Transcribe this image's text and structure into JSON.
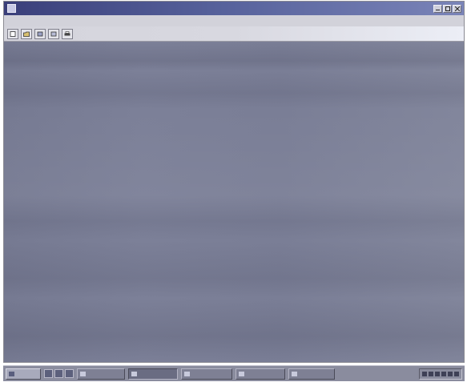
{
  "window": {
    "title": "",
    "controls": [
      {
        "icon": "minimize-icon"
      },
      {
        "icon": "maximize-icon"
      },
      {
        "icon": "close-icon"
      }
    ]
  },
  "menubar": {
    "items": [
      {
        "label": ""
      },
      {
        "label": ""
      }
    ]
  },
  "toolbar": {
    "buttons": [
      {
        "icon": "new-document-icon"
      },
      {
        "icon": "open-document-icon"
      },
      {
        "icon": "tool-icon"
      },
      {
        "icon": "tool-icon"
      },
      {
        "icon": "print-icon"
      }
    ]
  },
  "taskbar": {
    "start_label": "",
    "quick_launch": [
      {
        "icon": "app-icon"
      },
      {
        "icon": "app-icon"
      },
      {
        "icon": "app-icon"
      }
    ],
    "tasks": [
      {
        "label": "",
        "active": false
      },
      {
        "label": "",
        "active": true
      },
      {
        "label": "",
        "active": false
      },
      {
        "label": "",
        "active": false
      },
      {
        "label": "",
        "active": false
      }
    ],
    "tray_icons": [
      "tray-icon",
      "tray-icon",
      "tray-icon",
      "tray-icon",
      "tray-icon",
      "tray-icon"
    ]
  },
  "colors": {
    "titlebar": "#3a3f7a",
    "workspace": "#7a7e96",
    "taskbar": "#8a8c9e"
  }
}
